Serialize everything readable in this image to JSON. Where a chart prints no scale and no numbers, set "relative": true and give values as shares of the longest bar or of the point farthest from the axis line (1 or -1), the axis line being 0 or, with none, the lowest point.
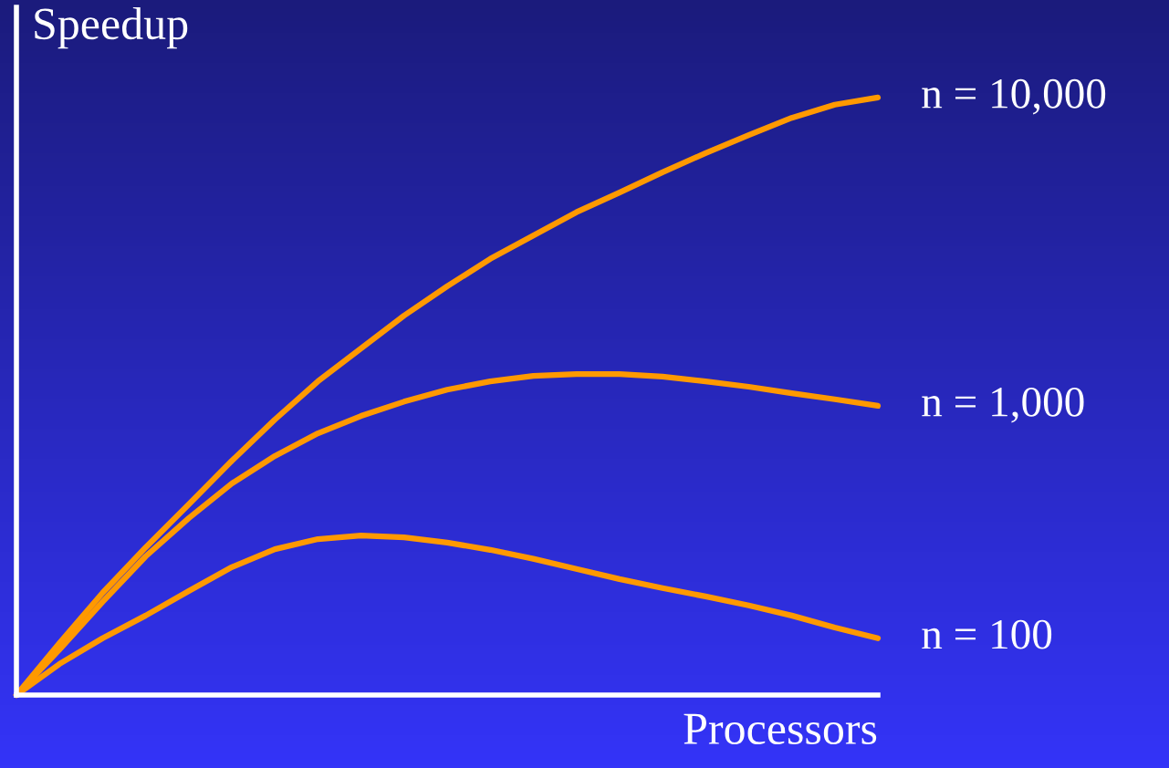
{
  "chart_data": {
    "type": "line",
    "relative": true,
    "xlabel": "Processors",
    "ylabel": "Speedup",
    "legend": false,
    "marker": "none",
    "line_style": "solid",
    "categories": [
      null,
      null,
      null,
      null,
      null,
      null,
      null,
      null,
      null,
      null,
      null,
      null,
      null,
      null,
      null,
      null,
      null,
      null,
      null,
      null,
      null
    ],
    "series": [
      {
        "name": "n = 10,000",
        "color": "#ff9900",
        "values": [
          0,
          0.087,
          0.171,
          0.247,
          0.319,
          0.392,
          0.461,
          0.525,
          0.58,
          0.635,
          0.684,
          0.73,
          0.769,
          0.808,
          0.841,
          0.875,
          0.907,
          0.937,
          0.966,
          0.988,
          1.0
        ]
      },
      {
        "name": "n = 1,000",
        "color": "#ff9900",
        "values": [
          0,
          0.076,
          0.156,
          0.232,
          0.296,
          0.354,
          0.4,
          0.438,
          0.467,
          0.491,
          0.511,
          0.525,
          0.534,
          0.537,
          0.537,
          0.533,
          0.525,
          0.516,
          0.505,
          0.495,
          0.484
        ]
      },
      {
        "name": "n = 100",
        "color": "#ff9900",
        "values": [
          0,
          0.052,
          0.095,
          0.133,
          0.174,
          0.214,
          0.244,
          0.261,
          0.267,
          0.264,
          0.255,
          0.243,
          0.228,
          0.211,
          0.194,
          0.179,
          0.165,
          0.15,
          0.133,
          0.113,
          0.095
        ]
      }
    ]
  }
}
